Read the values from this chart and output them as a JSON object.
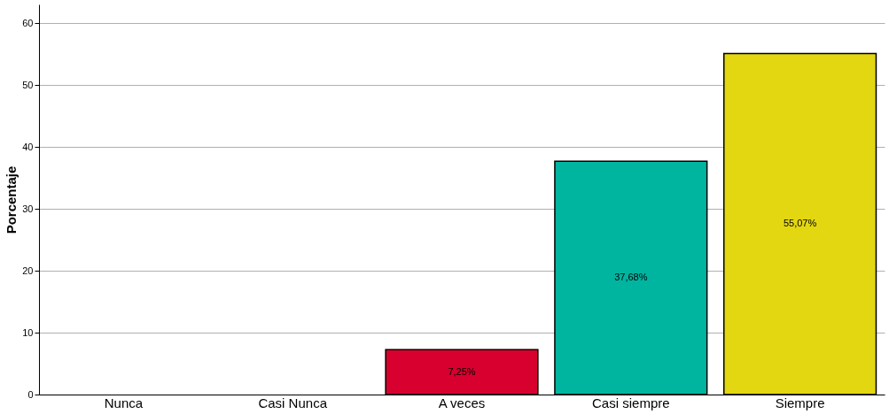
{
  "chart_data": {
    "type": "bar",
    "ylabel": "Porcentaje",
    "categories": [
      "Nunca",
      "Casi Nunca",
      "A veces",
      "Casi siempre",
      "Siempre"
    ],
    "values": [
      null,
      null,
      7.25,
      37.68,
      55.07
    ],
    "colors": [
      "#d8002f",
      "#d8002f",
      "#d8002f",
      "#00b5a0",
      "#e3d712"
    ],
    "value_labels": [
      null,
      null,
      "7,25%",
      "37,68%",
      "55,07%"
    ],
    "ylim": [
      0,
      63
    ],
    "yticks": [
      0,
      10,
      20,
      30,
      40,
      50,
      60
    ],
    "grid": "y"
  }
}
